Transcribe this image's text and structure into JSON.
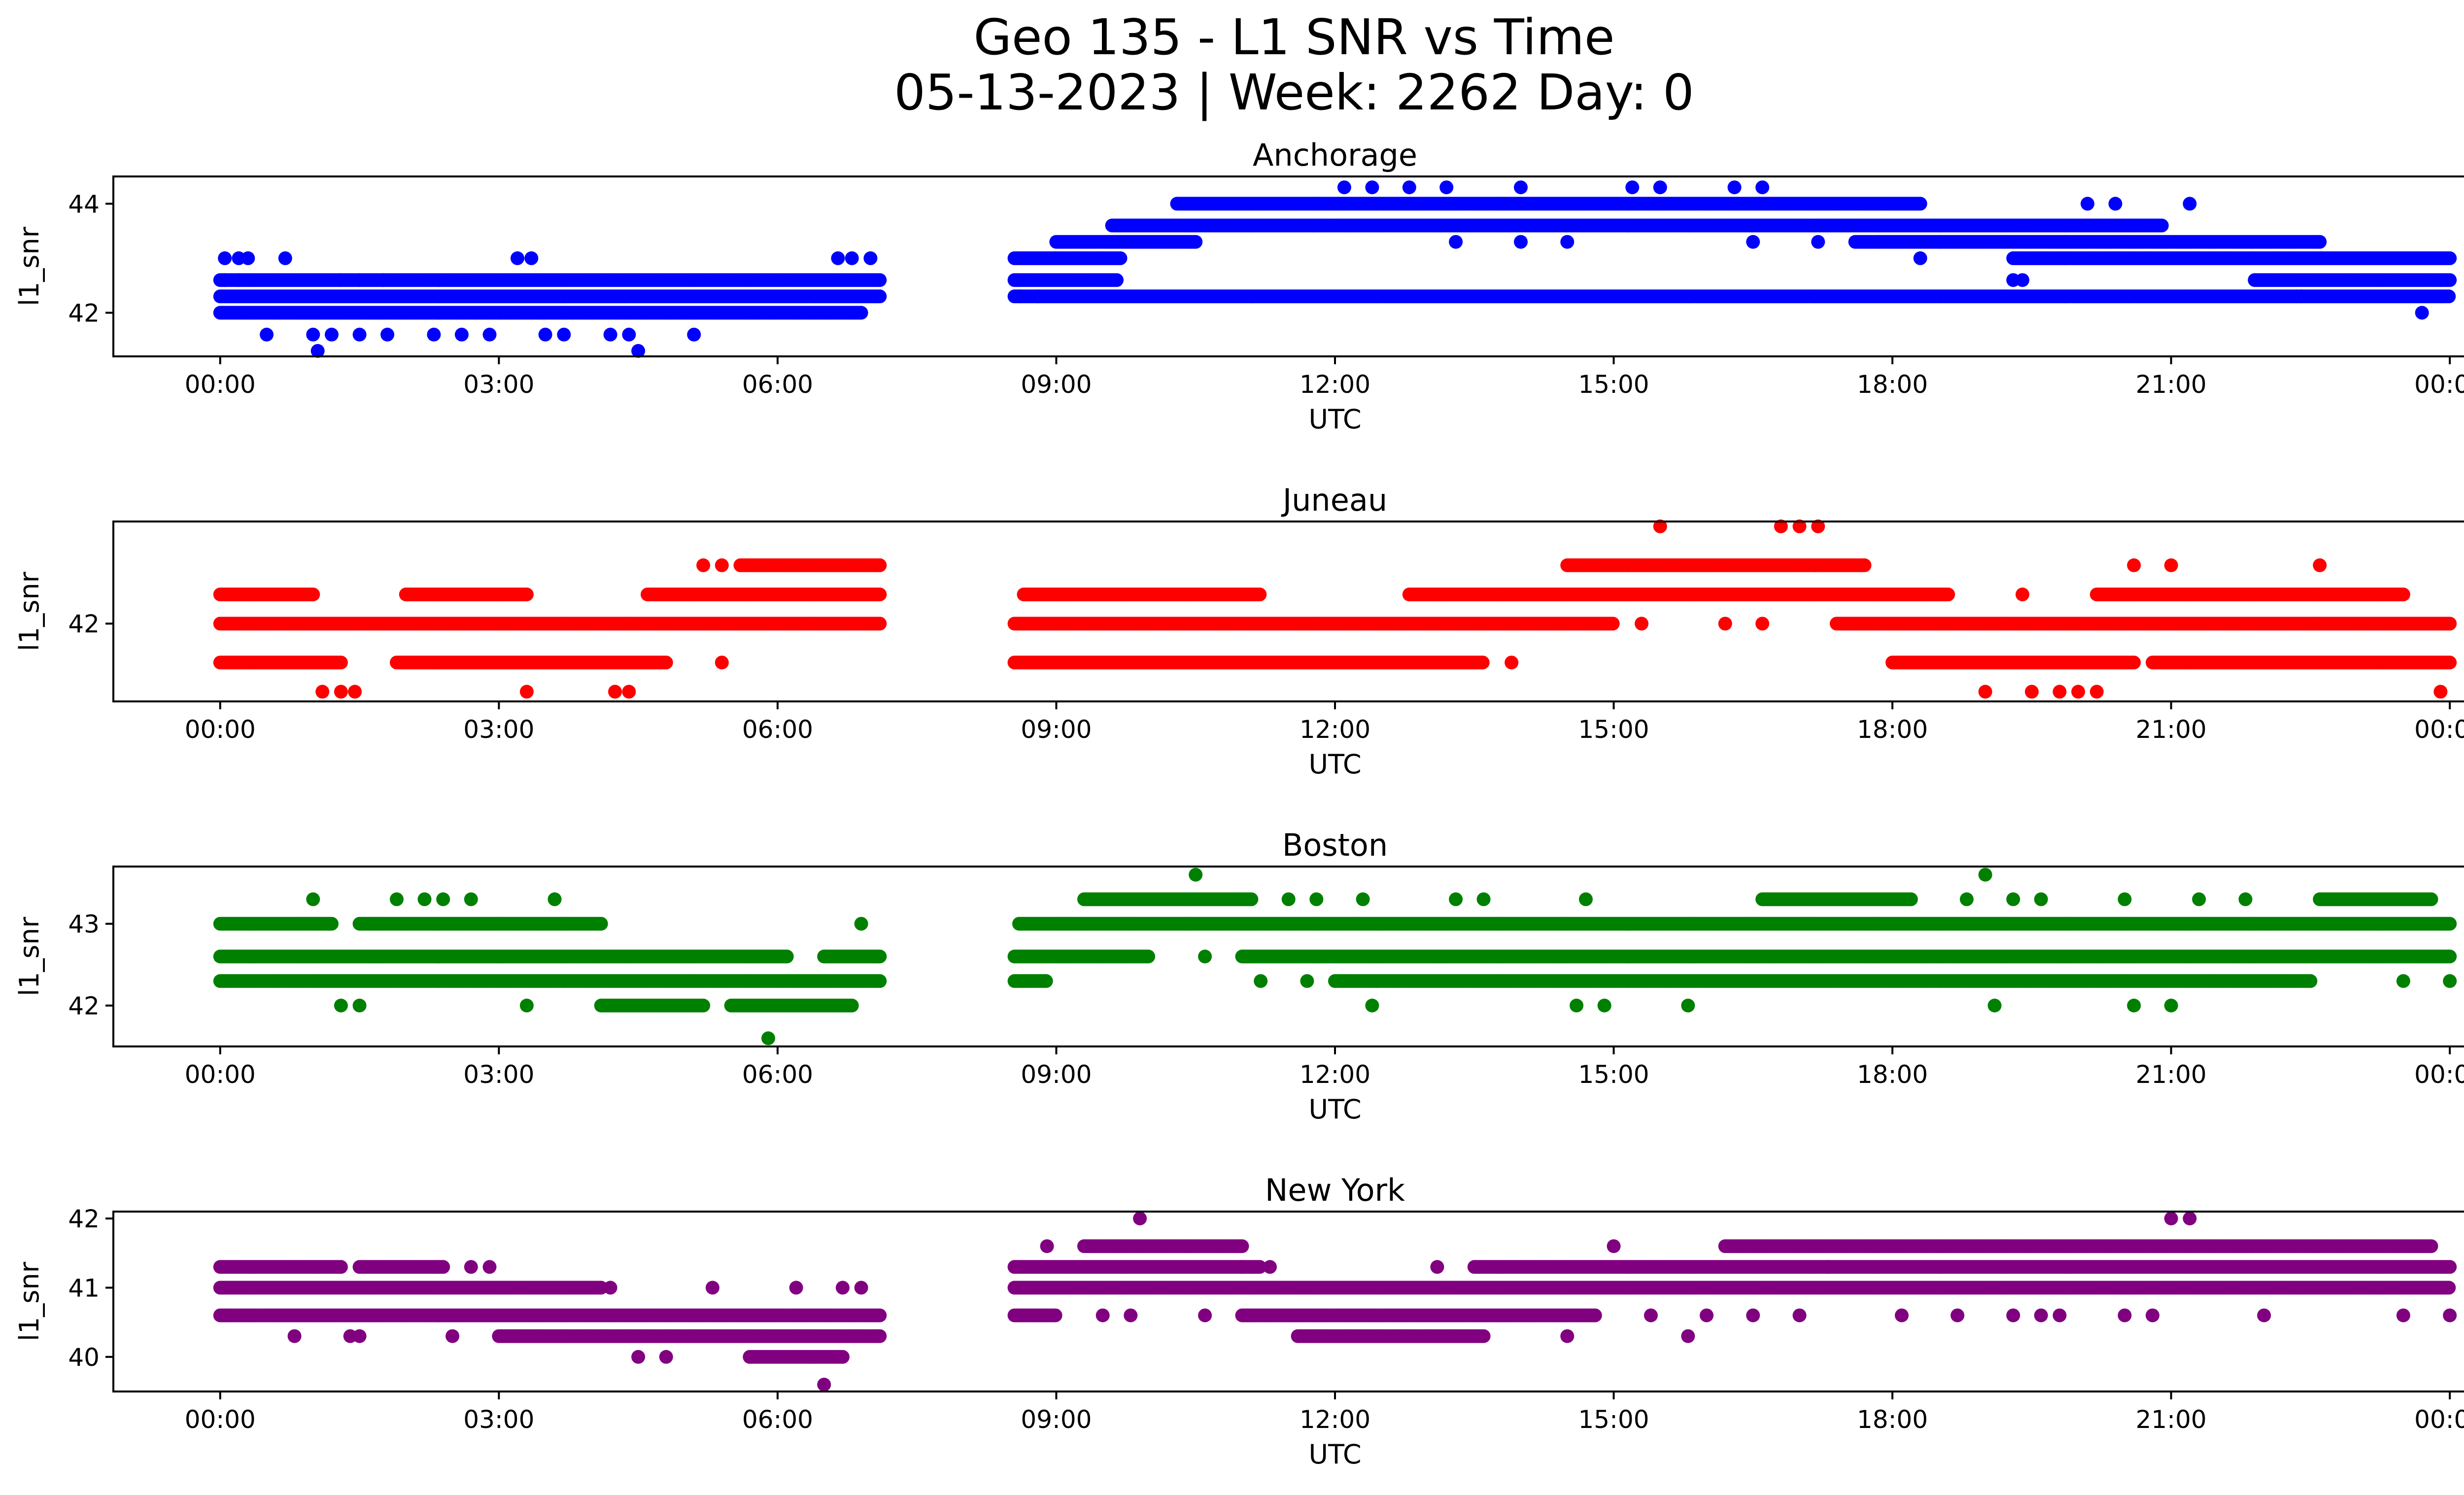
{
  "figure": {
    "title_line1": "Geo 135 - L1 SNR vs Time",
    "title_line2": "05-13-2023 | Week: 2262 Day: 0"
  },
  "chart_data": [
    {
      "type": "scatter",
      "title": "Anchorage",
      "xlabel": "UTC",
      "ylabel": "l1_snr",
      "color": "#0000ff",
      "x_ticks": [
        "00:00",
        "03:00",
        "06:00",
        "09:00",
        "12:00",
        "15:00",
        "18:00",
        "21:00",
        "00:00"
      ],
      "x_tick_hours": [
        0,
        3,
        6,
        9,
        12,
        15,
        18,
        21,
        24
      ],
      "xlim_hours": [
        -1.15,
        25.15
      ],
      "y_ticks": [
        42,
        44
      ],
      "ylim": [
        41.2,
        44.5
      ],
      "gaps_hours": [
        [
          7.1,
          8.55
        ]
      ],
      "bands": [
        {
          "y": 42.3,
          "ranges": [
            [
              0.0,
              7.1
            ],
            [
              8.55,
              24.0
            ]
          ]
        },
        {
          "y": 42.6,
          "ranges": [
            [
              0.0,
              7.1
            ],
            [
              8.55,
              9.65
            ],
            [
              21.9,
              24.0
            ]
          ]
        },
        {
          "y": 42.0,
          "ranges": [
            [
              0.0,
              6.9
            ]
          ]
        },
        {
          "y": 43.0,
          "ranges": [
            [
              8.55,
              9.7
            ],
            [
              19.3,
              24.0
            ]
          ]
        },
        {
          "y": 43.3,
          "ranges": [
            [
              9.0,
              10.5
            ],
            [
              17.6,
              22.6
            ]
          ]
        },
        {
          "y": 43.6,
          "ranges": [
            [
              9.6,
              20.9
            ]
          ]
        },
        {
          "y": 44.0,
          "ranges": [
            [
              10.3,
              18.3
            ]
          ]
        }
      ],
      "outliers": [
        [
          0.05,
          43.0
        ],
        [
          0.2,
          43.0
        ],
        [
          0.3,
          43.0
        ],
        [
          0.7,
          43.0
        ],
        [
          3.2,
          43.0
        ],
        [
          3.35,
          43.0
        ],
        [
          6.65,
          43.0
        ],
        [
          6.8,
          43.0
        ],
        [
          7.0,
          43.0
        ],
        [
          0.05,
          42.6
        ],
        [
          0.2,
          42.6
        ],
        [
          1.3,
          42.6
        ],
        [
          1.5,
          42.6
        ],
        [
          1.75,
          42.6
        ],
        [
          0.5,
          41.6
        ],
        [
          1.0,
          41.6
        ],
        [
          1.2,
          41.6
        ],
        [
          1.5,
          41.6
        ],
        [
          1.8,
          41.6
        ],
        [
          2.3,
          41.6
        ],
        [
          2.6,
          41.6
        ],
        [
          2.9,
          41.6
        ],
        [
          3.5,
          41.6
        ],
        [
          3.7,
          41.6
        ],
        [
          4.2,
          41.6
        ],
        [
          4.4,
          41.6
        ],
        [
          5.1,
          41.6
        ],
        [
          1.05,
          41.3
        ],
        [
          4.5,
          41.3
        ],
        [
          8.6,
          42.3
        ],
        [
          8.8,
          42.3
        ],
        [
          19.3,
          42.6
        ],
        [
          19.4,
          42.6
        ],
        [
          22.4,
          42.3
        ],
        [
          23.7,
          42.0
        ],
        [
          12.1,
          44.3
        ],
        [
          12.4,
          44.3
        ],
        [
          12.8,
          44.3
        ],
        [
          13.2,
          44.3
        ],
        [
          14.0,
          44.3
        ],
        [
          15.2,
          44.3
        ],
        [
          15.5,
          44.3
        ],
        [
          16.3,
          44.3
        ],
        [
          16.6,
          44.3
        ],
        [
          13.3,
          43.3
        ],
        [
          14.0,
          43.3
        ],
        [
          14.5,
          43.3
        ],
        [
          16.5,
          43.3
        ],
        [
          17.2,
          43.3
        ],
        [
          18.3,
          43.0
        ],
        [
          21.2,
          44.0
        ],
        [
          20.1,
          44.0
        ],
        [
          20.4,
          44.0
        ]
      ]
    },
    {
      "type": "scatter",
      "title": "Juneau",
      "xlabel": "UTC",
      "ylabel": "l1_snr",
      "color": "#ff0000",
      "x_ticks": [
        "00:00",
        "03:00",
        "06:00",
        "09:00",
        "12:00",
        "15:00",
        "18:00",
        "21:00",
        "00:00"
      ],
      "x_tick_hours": [
        0,
        3,
        6,
        9,
        12,
        15,
        18,
        21,
        24
      ],
      "xlim_hours": [
        -1.15,
        25.15
      ],
      "y_ticks": [
        42
      ],
      "ylim": [
        41.2,
        43.05
      ],
      "gaps_hours": [
        [
          7.1,
          8.55
        ]
      ],
      "bands": [
        {
          "y": 42.0,
          "ranges": [
            [
              0.0,
              7.1
            ],
            [
              8.55,
              15.0
            ],
            [
              17.4,
              24.0
            ]
          ]
        },
        {
          "y": 42.3,
          "ranges": [
            [
              0.0,
              1.0
            ],
            [
              2.0,
              3.3
            ],
            [
              4.6,
              7.1
            ],
            [
              8.65,
              11.2
            ],
            [
              12.8,
              18.6
            ],
            [
              20.2,
              23.5
            ]
          ]
        },
        {
          "y": 41.6,
          "ranges": [
            [
              0.0,
              1.3
            ],
            [
              1.9,
              4.8
            ],
            [
              8.55,
              13.6
            ],
            [
              18.0,
              20.6
            ],
            [
              20.8,
              24.0
            ]
          ]
        },
        {
          "y": 42.6,
          "ranges": [
            [
              5.6,
              7.1
            ],
            [
              14.5,
              17.7
            ]
          ]
        }
      ],
      "outliers": [
        [
          1.1,
          41.3
        ],
        [
          1.3,
          41.3
        ],
        [
          1.45,
          41.3
        ],
        [
          3.3,
          41.3
        ],
        [
          4.25,
          41.3
        ],
        [
          4.4,
          41.3
        ],
        [
          5.2,
          42.6
        ],
        [
          5.4,
          42.6
        ],
        [
          5.4,
          41.6
        ],
        [
          13.9,
          41.6
        ],
        [
          15.5,
          43.0
        ],
        [
          16.8,
          43.0
        ],
        [
          17.0,
          43.0
        ],
        [
          17.2,
          43.0
        ],
        [
          19.0,
          41.3
        ],
        [
          19.5,
          41.3
        ],
        [
          19.8,
          41.3
        ],
        [
          20.0,
          41.3
        ],
        [
          20.2,
          41.3
        ],
        [
          23.9,
          41.3
        ],
        [
          20.6,
          42.6
        ],
        [
          21.0,
          42.6
        ],
        [
          22.6,
          42.6
        ],
        [
          19.4,
          42.3
        ],
        [
          15.3,
          42.0
        ],
        [
          16.2,
          42.0
        ],
        [
          16.6,
          42.0
        ]
      ]
    },
    {
      "type": "scatter",
      "title": "Boston",
      "xlabel": "UTC",
      "ylabel": "l1_snr",
      "color": "#008000",
      "x_ticks": [
        "00:00",
        "03:00",
        "06:00",
        "09:00",
        "12:00",
        "15:00",
        "18:00",
        "21:00",
        "00:00"
      ],
      "x_tick_hours": [
        0,
        3,
        6,
        9,
        12,
        15,
        18,
        21,
        24
      ],
      "xlim_hours": [
        -1.15,
        25.15
      ],
      "y_ticks": [
        42,
        43
      ],
      "ylim": [
        41.5,
        43.7
      ],
      "gaps_hours": [
        [
          7.1,
          8.55
        ]
      ],
      "bands": [
        {
          "y": 42.6,
          "ranges": [
            [
              0.0,
              6.1
            ],
            [
              6.5,
              7.1
            ],
            [
              8.55,
              10.0
            ],
            [
              11.0,
              24.0
            ]
          ]
        },
        {
          "y": 42.3,
          "ranges": [
            [
              0.0,
              7.1
            ],
            [
              8.55,
              8.9
            ],
            [
              12.0,
              22.5
            ]
          ]
        },
        {
          "y": 43.0,
          "ranges": [
            [
              0.0,
              1.2
            ],
            [
              1.5,
              4.1
            ],
            [
              8.6,
              24.0
            ]
          ]
        },
        {
          "y": 42.0,
          "ranges": [
            [
              4.1,
              5.2
            ],
            [
              5.5,
              6.8
            ]
          ]
        },
        {
          "y": 43.3,
          "ranges": [
            [
              9.3,
              11.1
            ],
            [
              16.6,
              18.2
            ],
            [
              22.6,
              23.8
            ]
          ]
        }
      ],
      "outliers": [
        [
          1.0,
          43.3
        ],
        [
          1.9,
          43.3
        ],
        [
          2.2,
          43.3
        ],
        [
          2.4,
          43.3
        ],
        [
          2.7,
          43.3
        ],
        [
          3.6,
          43.3
        ],
        [
          1.3,
          42.0
        ],
        [
          1.5,
          42.0
        ],
        [
          3.3,
          42.0
        ],
        [
          5.9,
          41.6
        ],
        [
          6.9,
          43.0
        ],
        [
          10.5,
          43.6
        ],
        [
          19.0,
          43.6
        ],
        [
          10.6,
          42.6
        ],
        [
          11.5,
          43.3
        ],
        [
          11.8,
          43.3
        ],
        [
          12.3,
          43.3
        ],
        [
          13.3,
          43.3
        ],
        [
          13.6,
          43.3
        ],
        [
          14.7,
          43.3
        ],
        [
          18.8,
          43.3
        ],
        [
          19.3,
          43.3
        ],
        [
          19.6,
          43.3
        ],
        [
          20.5,
          43.3
        ],
        [
          21.3,
          43.3
        ],
        [
          21.8,
          43.3
        ],
        [
          11.2,
          42.3
        ],
        [
          11.7,
          42.3
        ],
        [
          12.4,
          42.0
        ],
        [
          14.6,
          42.0
        ],
        [
          14.9,
          42.0
        ],
        [
          15.8,
          42.0
        ],
        [
          19.1,
          42.0
        ],
        [
          20.6,
          42.0
        ],
        [
          21.0,
          42.0
        ],
        [
          23.5,
          42.3
        ],
        [
          24.0,
          42.3
        ]
      ]
    },
    {
      "type": "scatter",
      "title": "New York",
      "xlabel": "UTC",
      "ylabel": "l1_snr",
      "color": "#800080",
      "x_ticks": [
        "00:00",
        "03:00",
        "06:00",
        "09:00",
        "12:00",
        "15:00",
        "18:00",
        "21:00",
        "00:00"
      ],
      "x_tick_hours": [
        0,
        3,
        6,
        9,
        12,
        15,
        18,
        21,
        24
      ],
      "xlim_hours": [
        -1.15,
        25.15
      ],
      "y_ticks": [
        40,
        41,
        42
      ],
      "ylim": [
        39.5,
        42.1
      ],
      "gaps_hours": [
        [
          7.1,
          8.55
        ]
      ],
      "bands": [
        {
          "y": 41.0,
          "ranges": [
            [
              0.0,
              4.1
            ],
            [
              8.55,
              24.0
            ]
          ]
        },
        {
          "y": 41.3,
          "ranges": [
            [
              0.0,
              1.3
            ],
            [
              1.5,
              2.4
            ],
            [
              8.55,
              11.2
            ],
            [
              13.5,
              24.0
            ]
          ]
        },
        {
          "y": 40.6,
          "ranges": [
            [
              0.0,
              7.1
            ],
            [
              8.55,
              9.0
            ],
            [
              11.0,
              14.8
            ]
          ]
        },
        {
          "y": 40.3,
          "ranges": [
            [
              3.0,
              7.1
            ],
            [
              11.6,
              13.6
            ]
          ]
        },
        {
          "y": 41.6,
          "ranges": [
            [
              9.3,
              11.0
            ],
            [
              16.2,
              23.8
            ]
          ]
        },
        {
          "y": 40.0,
          "ranges": [
            [
              5.7,
              6.7
            ]
          ]
        }
      ],
      "outliers": [
        [
          0.8,
          40.3
        ],
        [
          1.4,
          40.3
        ],
        [
          1.5,
          40.3
        ],
        [
          2.5,
          40.3
        ],
        [
          2.7,
          41.3
        ],
        [
          2.9,
          41.3
        ],
        [
          4.2,
          41.0
        ],
        [
          4.5,
          40.0
        ],
        [
          4.8,
          40.0
        ],
        [
          5.3,
          41.0
        ],
        [
          6.2,
          41.0
        ],
        [
          6.5,
          39.6
        ],
        [
          6.7,
          41.0
        ],
        [
          6.9,
          41.0
        ],
        [
          8.9,
          41.6
        ],
        [
          9.9,
          42.0
        ],
        [
          9.5,
          40.6
        ],
        [
          9.8,
          40.6
        ],
        [
          10.6,
          40.6
        ],
        [
          11.0,
          41.3
        ],
        [
          11.3,
          41.3
        ],
        [
          13.1,
          41.3
        ],
        [
          14.5,
          40.3
        ],
        [
          15.0,
          41.6
        ],
        [
          15.8,
          40.3
        ],
        [
          15.4,
          40.6
        ],
        [
          16.0,
          40.6
        ],
        [
          16.5,
          40.6
        ],
        [
          17.0,
          40.6
        ],
        [
          17.3,
          41.3
        ],
        [
          18.1,
          40.6
        ],
        [
          18.7,
          40.6
        ],
        [
          19.3,
          40.6
        ],
        [
          19.6,
          40.6
        ],
        [
          19.8,
          40.6
        ],
        [
          20.5,
          40.6
        ],
        [
          20.8,
          40.6
        ],
        [
          21.0,
          42.0
        ],
        [
          21.2,
          42.0
        ],
        [
          22.0,
          40.6
        ],
        [
          23.5,
          40.6
        ],
        [
          24.0,
          40.6
        ]
      ]
    }
  ]
}
